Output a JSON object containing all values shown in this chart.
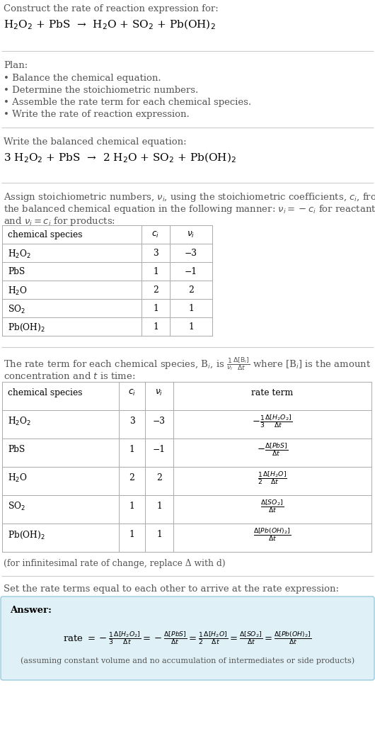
{
  "bg_color": "#ffffff",
  "gray_text": "#555555",
  "black": "#000000",
  "answer_bg": "#dff0f7",
  "answer_border": "#99ccdd",
  "title_line1": "Construct the rate of reaction expression for:",
  "title_line2": "H$_2$O$_2$ + PbS  →  H$_2$O + SO$_2$ + Pb(OH)$_2$",
  "plan_header": "Plan:",
  "plan_items": [
    "• Balance the chemical equation.",
    "• Determine the stoichiometric numbers.",
    "• Assemble the rate term for each chemical species.",
    "• Write the rate of reaction expression."
  ],
  "balanced_header": "Write the balanced chemical equation:",
  "balanced_eq": "3 H$_2$O$_2$ + PbS  →  2 H$_2$O + SO$_2$ + Pb(OH)$_2$",
  "assign_text1": "Assign stoichiometric numbers, $\\nu_i$, using the stoichiometric coefficients, $c_i$, from",
  "assign_text2": "the balanced chemical equation in the following manner: $\\nu_i = -c_i$ for reactants",
  "assign_text3": "and $\\nu_i = c_i$ for products:",
  "t1_headers": [
    "chemical species",
    "$c_i$",
    "$\\nu_i$"
  ],
  "t1_species": [
    "H$_2$O$_2$",
    "PbS",
    "H$_2$O",
    "SO$_2$",
    "Pb(OH)$_2$"
  ],
  "t1_ci": [
    "3",
    "1",
    "2",
    "1",
    "1"
  ],
  "t1_ni": [
    "−3",
    "−1",
    "2",
    "1",
    "1"
  ],
  "rate_text1": "The rate term for each chemical species, B$_i$, is $\\frac{1}{\\nu_i}\\frac{\\Delta[\\mathrm{B}_i]}{\\Delta t}$ where [B$_i$] is the amount",
  "rate_text2": "concentration and $t$ is time:",
  "t2_headers": [
    "chemical species",
    "$c_i$",
    "$\\nu_i$",
    "rate term"
  ],
  "t2_species": [
    "H$_2$O$_2$",
    "PbS",
    "H$_2$O",
    "SO$_2$",
    "Pb(OH)$_2$"
  ],
  "t2_ci": [
    "3",
    "1",
    "2",
    "1",
    "1"
  ],
  "t2_ni": [
    "−3",
    "−1",
    "2",
    "1",
    "1"
  ],
  "t2_rate": [
    "$-\\frac{1}{3}\\frac{\\Delta[H_2O_2]}{\\Delta t}$",
    "$-\\frac{\\Delta[PbS]}{\\Delta t}$",
    "$\\frac{1}{2}\\frac{\\Delta[H_2O]}{\\Delta t}$",
    "$\\frac{\\Delta[SO_2]}{\\Delta t}$",
    "$\\frac{\\Delta[Pb(OH)_2]}{\\Delta t}$"
  ],
  "inf_note": "(for infinitesimal rate of change, replace Δ with d)",
  "set_text": "Set the rate terms equal to each other to arrive at the rate expression:",
  "ans_label": "Answer:",
  "ans_eq": "rate $= -\\frac{1}{3}\\frac{\\Delta[H_2O_2]}{\\Delta t} = -\\frac{\\Delta[PbS]}{\\Delta t} = \\frac{1}{2}\\frac{\\Delta[H_2O]}{\\Delta t} = \\frac{\\Delta[SO_2]}{\\Delta t} = \\frac{\\Delta[Pb(OH)_2]}{\\Delta t}$",
  "ans_note": "(assuming constant volume and no accumulation of intermediates or side products)"
}
